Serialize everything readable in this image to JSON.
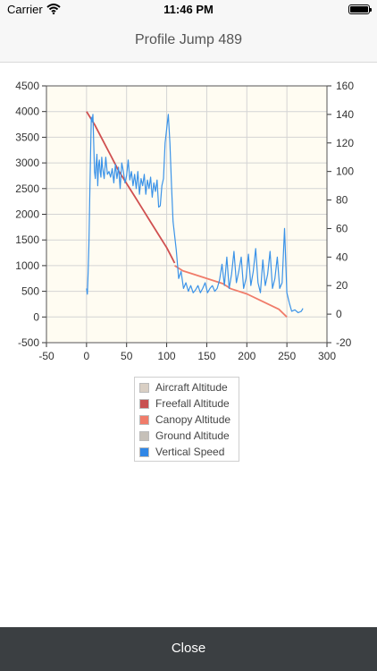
{
  "status_bar": {
    "carrier": "Carrier",
    "time": "11:46 PM",
    "icons": [
      "wifi-icon",
      "battery-icon"
    ]
  },
  "nav": {
    "title": "Profile Jump 489"
  },
  "footer": {
    "close_label": "Close"
  },
  "colors": {
    "aircraft": "#d9cfc4",
    "freefall": "#d05050",
    "canopy": "#f07c6a",
    "ground": "#c6c0b8",
    "vertical_speed": "#3b93e8",
    "plot_background": "#fffcf2"
  },
  "legend": [
    {
      "label": "Aircraft Altitude",
      "color": "#d9cfc4"
    },
    {
      "label": "Freefall Altitude",
      "color": "#c85050"
    },
    {
      "label": "Canopy Altitude",
      "color": "#f07c6a"
    },
    {
      "label": "Ground Altitude",
      "color": "#c6c0b8"
    },
    {
      "label": "Vertical Speed",
      "color": "#2f86e6"
    }
  ],
  "chart_data": {
    "type": "line",
    "title": "",
    "xlabel": "",
    "ylabel": "",
    "xlim": [
      -50,
      300
    ],
    "ylim_left": [
      -500,
      4500
    ],
    "ylim_right": [
      -20,
      160
    ],
    "grid": true,
    "x_ticks": [
      "-50",
      "0",
      "50",
      "100",
      "150",
      "200",
      "250",
      "300"
    ],
    "y_ticks_left": [
      "4500",
      "4000",
      "3500",
      "3000",
      "2500",
      "2000",
      "1500",
      "1000",
      "500",
      "0",
      "-500"
    ],
    "y_ticks_right": [
      "160",
      "140",
      "120",
      "100",
      "80",
      "60",
      "40",
      "20",
      "0",
      "-20"
    ],
    "series": [
      {
        "name": "Freefall Altitude",
        "axis": "left",
        "x": [
          0,
          10,
          20,
          30,
          40,
          50,
          60,
          70,
          80,
          90,
          100,
          105,
          110
        ],
        "y": [
          4000,
          3750,
          3450,
          3150,
          2850,
          2600,
          2350,
          2100,
          1850,
          1600,
          1350,
          1200,
          1050
        ]
      },
      {
        "name": "Canopy Altitude",
        "axis": "left",
        "x": [
          110,
          120,
          140,
          160,
          170,
          180,
          200,
          220,
          240,
          250
        ],
        "y": [
          1000,
          900,
          800,
          700,
          650,
          550,
          450,
          300,
          150,
          0
        ]
      },
      {
        "name": "Vertical Speed",
        "axis": "right",
        "x": [
          0,
          1,
          2,
          3,
          4,
          5,
          6,
          7,
          8,
          9,
          10,
          11,
          12,
          13,
          14,
          15,
          16,
          17,
          18,
          19,
          20,
          22,
          24,
          26,
          28,
          30,
          32,
          34,
          36,
          38,
          40,
          42,
          44,
          46,
          48,
          50,
          52,
          54,
          56,
          58,
          60,
          62,
          64,
          66,
          68,
          70,
          72,
          74,
          76,
          78,
          80,
          82,
          84,
          86,
          88,
          90,
          92,
          94,
          96,
          98,
          100,
          102,
          104,
          106,
          108,
          110,
          112,
          115,
          118,
          121,
          124,
          127,
          130,
          133,
          136,
          139,
          142,
          145,
          148,
          151,
          154,
          157,
          160,
          163,
          166,
          169,
          172,
          175,
          178,
          181,
          184,
          187,
          190,
          193,
          196,
          199,
          202,
          205,
          208,
          211,
          214,
          217,
          220,
          223,
          226,
          229,
          232,
          235,
          238,
          241,
          244,
          247,
          250,
          253,
          256,
          260,
          264,
          268,
          270
        ],
        "y": [
          18,
          14,
          30,
          48,
          80,
          110,
          138,
          135,
          140,
          120,
          100,
          95,
          105,
          112,
          90,
          104,
          108,
          100,
          96,
          110,
          103,
          95,
          110,
          98,
          100,
          96,
          102,
          92,
          105,
          95,
          103,
          88,
          106,
          100,
          92,
          97,
          108,
          94,
          100,
          90,
          98,
          88,
          100,
          84,
          95,
          90,
          98,
          84,
          94,
          88,
          96,
          82,
          92,
          86,
          94,
          75,
          76,
          90,
          95,
          120,
          130,
          140,
          120,
          90,
          65,
          55,
          45,
          25,
          30,
          18,
          22,
          16,
          20,
          15,
          17,
          20,
          15,
          18,
          22,
          15,
          18,
          20,
          16,
          18,
          24,
          35,
          20,
          40,
          18,
          28,
          44,
          22,
          30,
          40,
          18,
          25,
          42,
          20,
          30,
          46,
          22,
          15,
          38,
          20,
          28,
          44,
          18,
          25,
          40,
          18,
          22,
          60,
          15,
          8,
          2,
          3,
          1,
          2,
          4
        ]
      }
    ]
  }
}
